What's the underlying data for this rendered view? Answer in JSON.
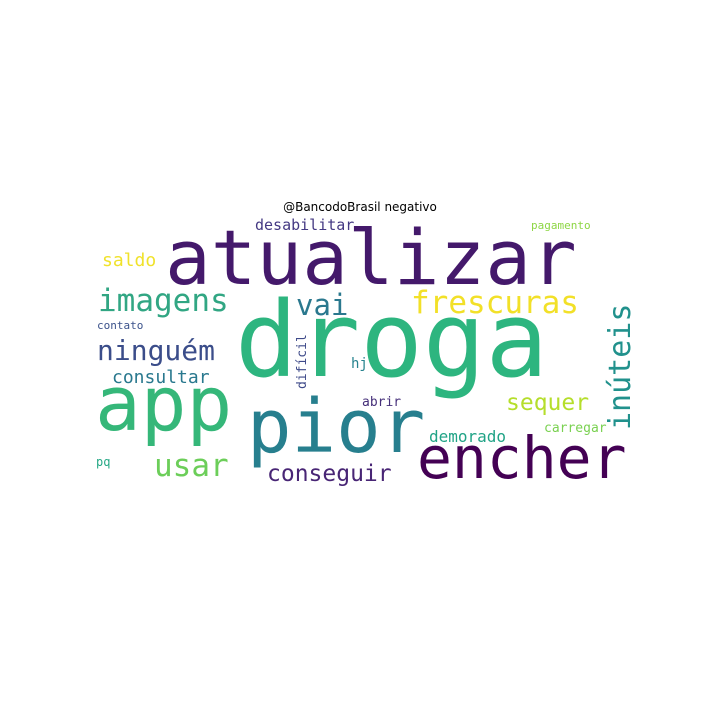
{
  "title": "@BancodoBrasil negativo",
  "words": [
    {
      "text": "droga",
      "color": "#2db57f"
    },
    {
      "text": "atualizar",
      "color": "#44196b"
    },
    {
      "text": "app",
      "color": "#35b779"
    },
    {
      "text": "pior",
      "color": "#277f8e"
    },
    {
      "text": "encher",
      "color": "#440154"
    },
    {
      "text": "imagens",
      "color": "#31a683"
    },
    {
      "text": "frescuras",
      "color": "#f2e028"
    },
    {
      "text": "vai",
      "color": "#2a788e"
    },
    {
      "text": "ninguém",
      "color": "#3b4d8a"
    },
    {
      "text": "inúteis",
      "color": "#21918c"
    },
    {
      "text": "usar",
      "color": "#6cce59"
    },
    {
      "text": "conseguir",
      "color": "#482575"
    },
    {
      "text": "sequer",
      "color": "#b5de2b"
    },
    {
      "text": "consultar",
      "color": "#29788e"
    },
    {
      "text": "demorado",
      "color": "#20a386"
    },
    {
      "text": "saldo",
      "color": "#f0e22b"
    },
    {
      "text": "desabilitar",
      "color": "#443983"
    },
    {
      "text": "carregar",
      "color": "#7ad151"
    },
    {
      "text": "abrir",
      "color": "#46307a"
    },
    {
      "text": "difícil",
      "color": "#3e4a89"
    },
    {
      "text": "hj",
      "color": "#26828e"
    },
    {
      "text": "contato",
      "color": "#3b528b"
    },
    {
      "text": "pagamento",
      "color": "#8ed645"
    },
    {
      "text": "pq",
      "color": "#25a885"
    }
  ]
}
